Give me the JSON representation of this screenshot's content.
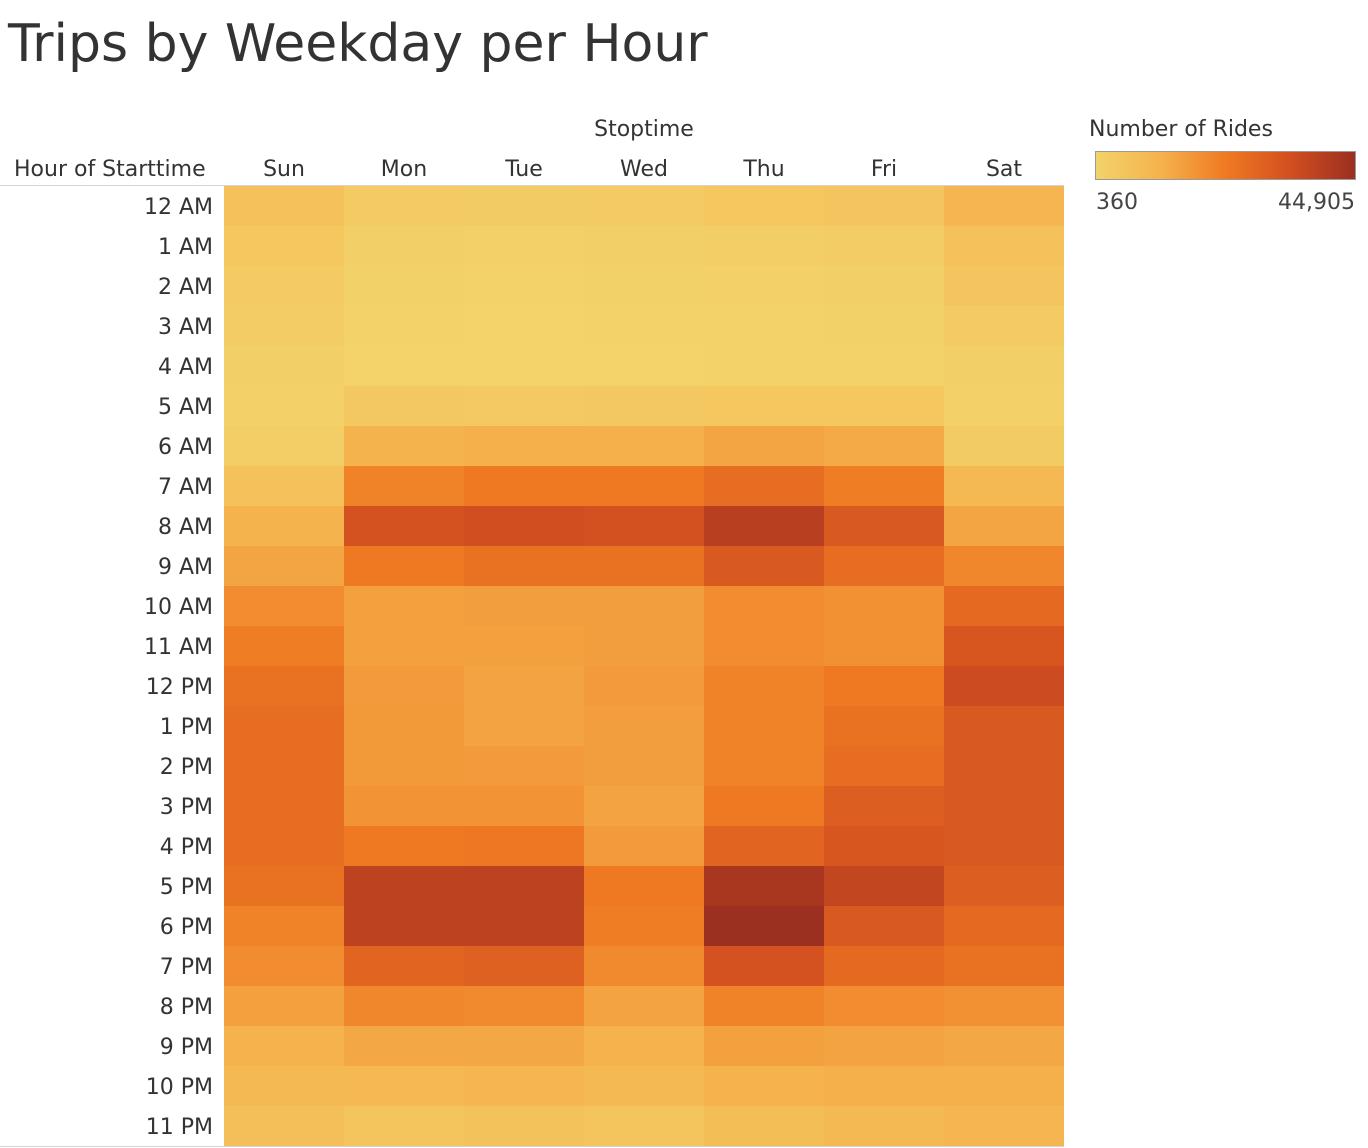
{
  "title": "Trips by Weekday per Hour",
  "colors": {
    "scale_low": "#f3d36a",
    "scale_mid1": "#f5b24d",
    "scale_mid2": "#ef7a22",
    "scale_mid3": "#d24f20",
    "scale_high": "#9b2f20",
    "text": "#333333"
  },
  "legend": {
    "title": "Number of Rides",
    "min_label": "360",
    "max_label": "44,905"
  },
  "chart_data": {
    "type": "heatmap",
    "column_header": "Stoptime",
    "row_header": "Hour of Starttime",
    "x": [
      "Sun",
      "Mon",
      "Tue",
      "Wed",
      "Thu",
      "Fri",
      "Sat"
    ],
    "y": [
      "12 AM",
      "1 AM",
      "2 AM",
      "3 AM",
      "4 AM",
      "5 AM",
      "6 AM",
      "7 AM",
      "8 AM",
      "9 AM",
      "10 AM",
      "11 AM",
      "12 PM",
      "1 PM",
      "2 PM",
      "3 PM",
      "4 PM",
      "5 PM",
      "6 PM",
      "7 PM",
      "8 PM",
      "9 PM",
      "10 PM",
      "11 PM"
    ],
    "value_range": [
      360,
      44905
    ],
    "values": [
      [
        6500,
        3500,
        3000,
        3500,
        4500,
        5000,
        10000
      ],
      [
        4500,
        1500,
        1300,
        1500,
        2000,
        2500,
        6500
      ],
      [
        3500,
        900,
        800,
        900,
        1200,
        1500,
        5000
      ],
      [
        2500,
        600,
        500,
        600,
        700,
        900,
        3500
      ],
      [
        1500,
        500,
        450,
        500,
        550,
        600,
        1500
      ],
      [
        1000,
        4000,
        3800,
        4000,
        4500,
        4500,
        1000
      ],
      [
        2000,
        11000,
        12000,
        12000,
        14000,
        13000,
        3000
      ],
      [
        6500,
        21000,
        23000,
        23000,
        26000,
        22000,
        9000
      ],
      [
        11000,
        33000,
        34000,
        33500,
        39000,
        31000,
        14000
      ],
      [
        14000,
        23000,
        25000,
        25000,
        31000,
        26000,
        20000
      ],
      [
        19000,
        15000,
        15500,
        15500,
        19000,
        18000,
        27000
      ],
      [
        22000,
        15000,
        15000,
        15500,
        19000,
        18000,
        32000
      ],
      [
        25000,
        16000,
        14500,
        16000,
        21000,
        23000,
        35000
      ],
      [
        26000,
        16500,
        14500,
        15500,
        21000,
        25000,
        31000
      ],
      [
        26000,
        16500,
        16000,
        15500,
        21000,
        26000,
        31000
      ],
      [
        26000,
        17500,
        17500,
        14500,
        23000,
        30000,
        31000
      ],
      [
        26000,
        23000,
        23500,
        16000,
        28000,
        32000,
        31000
      ],
      [
        25000,
        38000,
        38000,
        23000,
        42000,
        37000,
        30000
      ],
      [
        21000,
        38000,
        38000,
        22000,
        44905,
        31000,
        27000
      ],
      [
        19000,
        28000,
        29000,
        19500,
        33000,
        27000,
        25000
      ],
      [
        15000,
        20000,
        19500,
        14500,
        21000,
        19000,
        18000
      ],
      [
        11500,
        13500,
        13500,
        11500,
        15000,
        14500,
        13500
      ],
      [
        9000,
        9500,
        10000,
        9000,
        11500,
        12000,
        12000
      ],
      [
        7000,
        5500,
        6000,
        5500,
        7500,
        9000,
        10000
      ]
    ]
  }
}
